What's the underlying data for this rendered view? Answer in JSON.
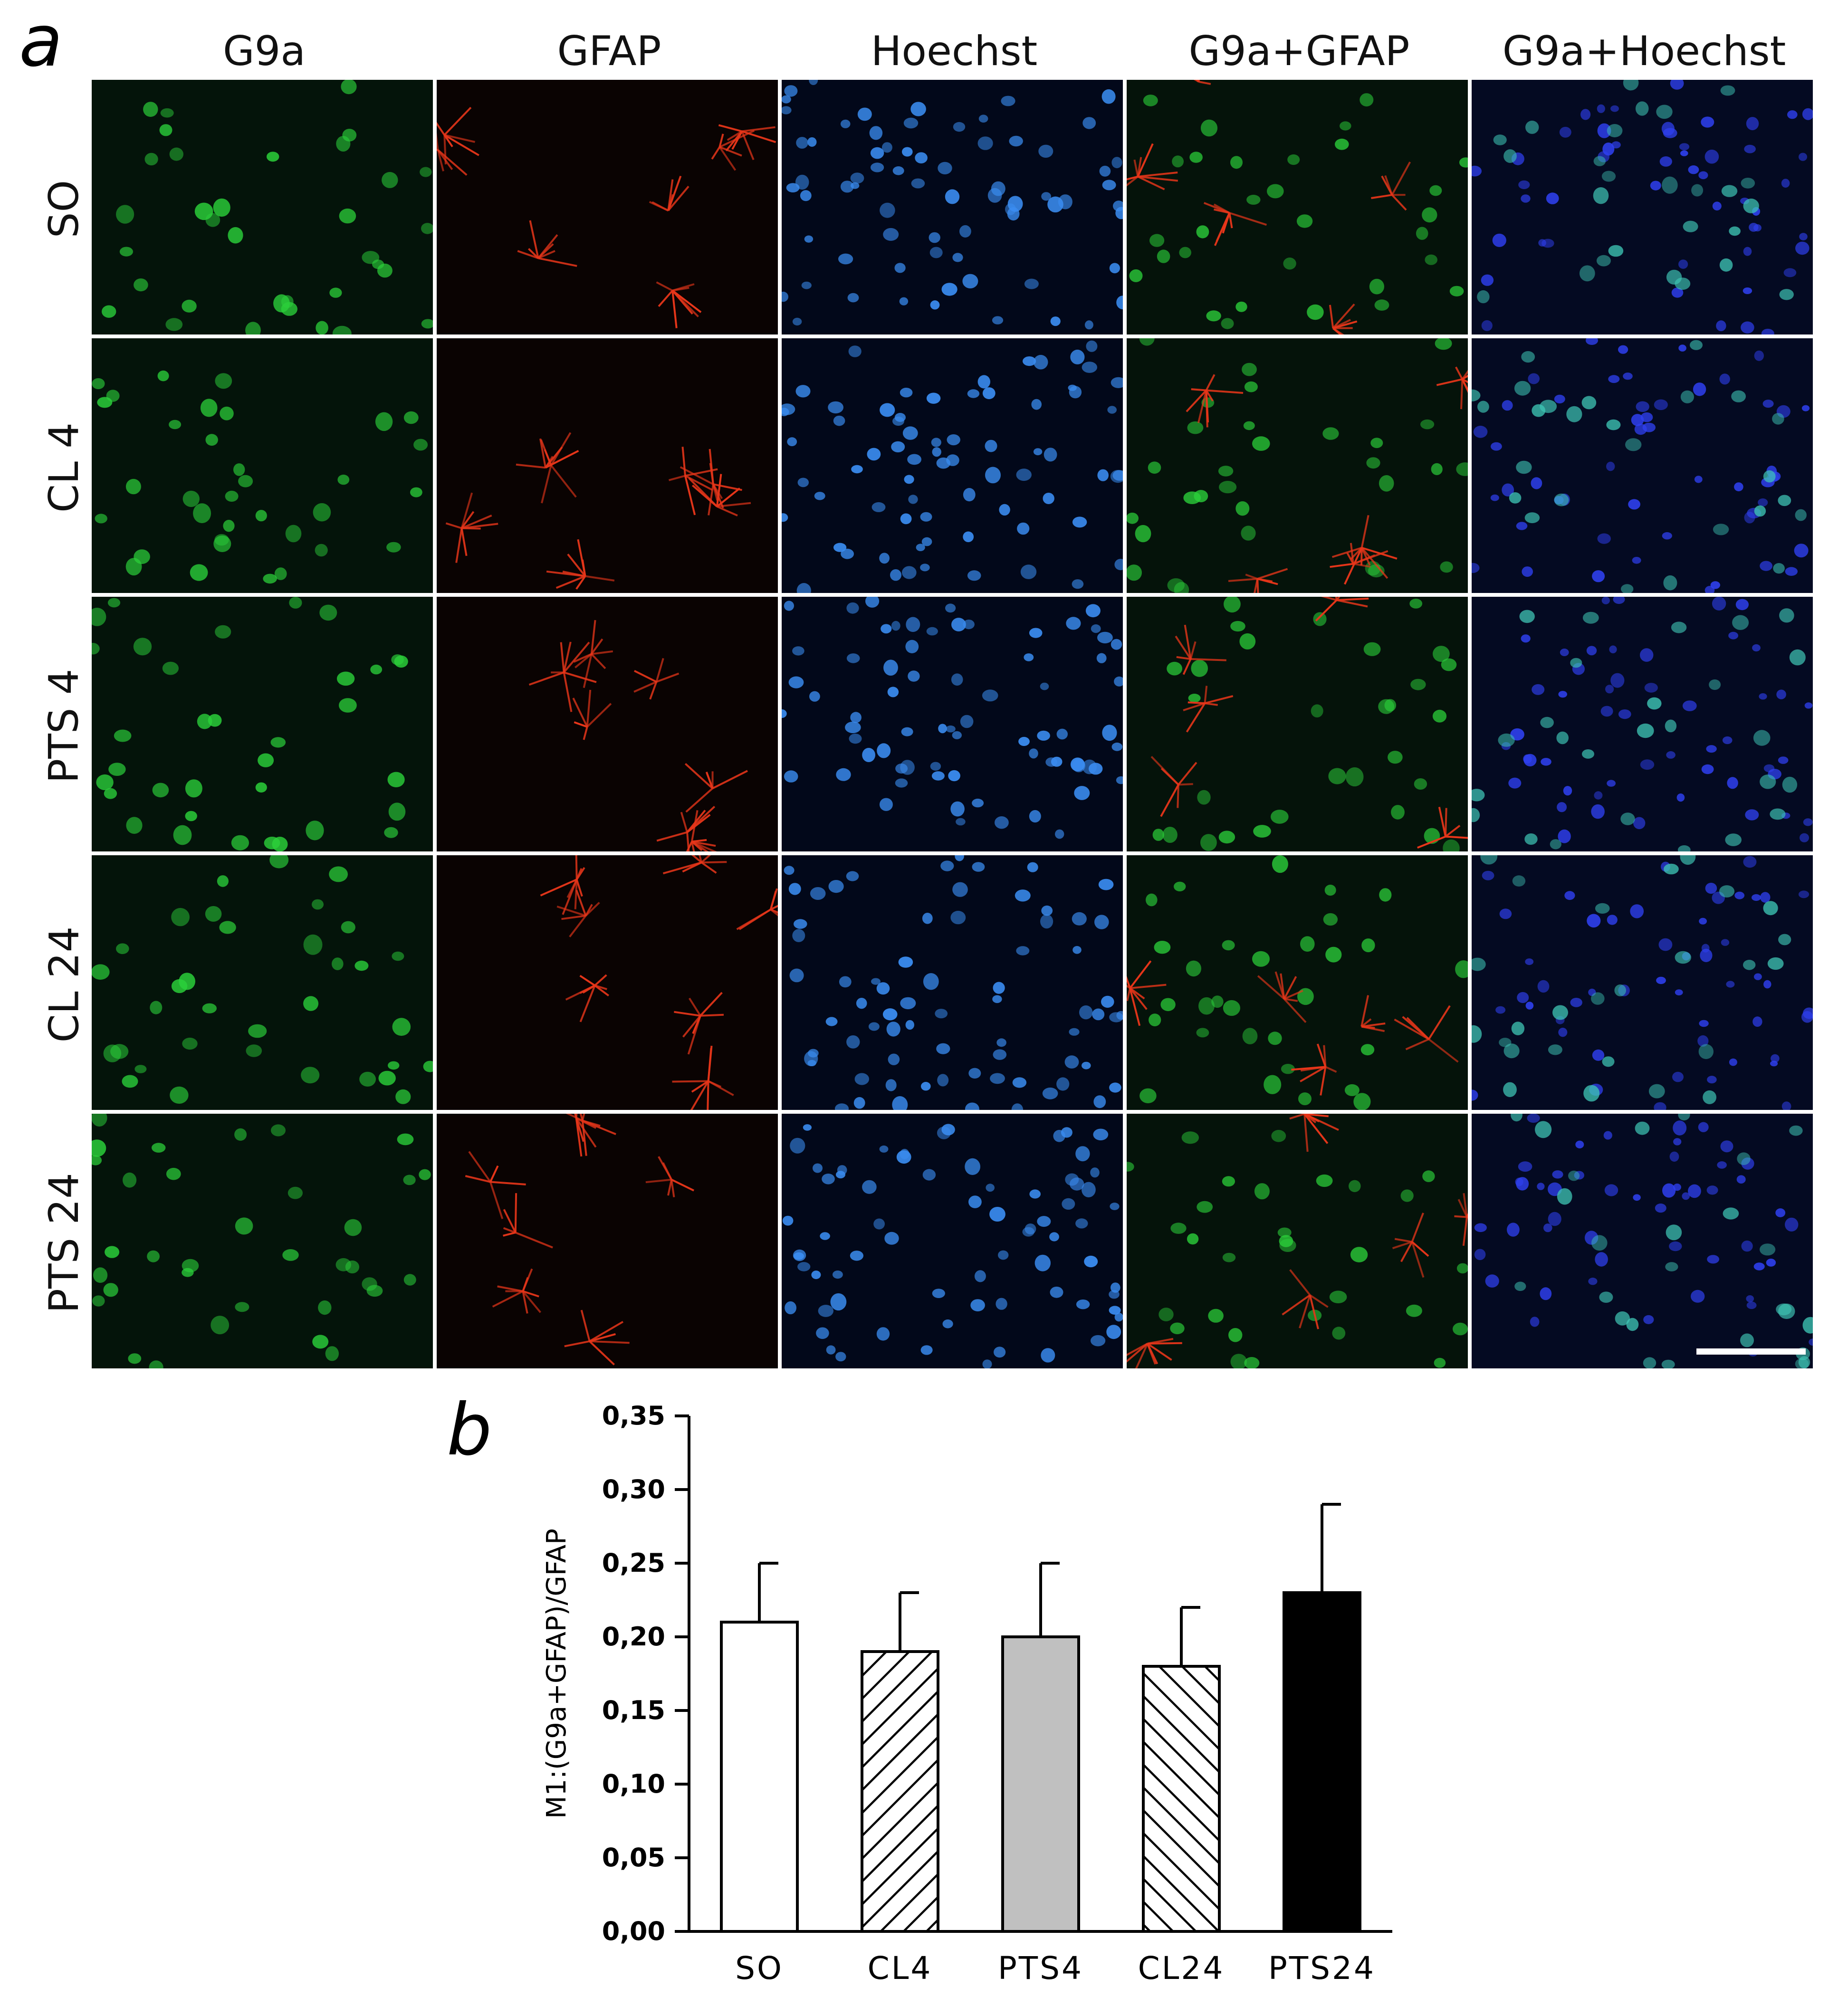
{
  "panel_a": {
    "letter": "a",
    "columns": [
      "G9a",
      "GFAP",
      "Hoechst",
      "G9a+GFAP",
      "G9a+Hoechst"
    ],
    "rows": [
      "SO",
      "CL 4",
      "PTS 4",
      "CL 24",
      "PTS 24"
    ],
    "channel_colors": {
      "G9a": "#2bd03a",
      "GFAP": "#e8361a",
      "Hoechst": "#3a8cf0",
      "G9a+GFAP": "#2bd03a",
      "G9a+Hoechst": "#2f40f0"
    }
  },
  "panel_b": {
    "letter": "b"
  },
  "chart_data": {
    "type": "bar",
    "categories": [
      "SO",
      "CL4",
      "PTS4",
      "CL24",
      "PTS24"
    ],
    "values": [
      0.21,
      0.19,
      0.2,
      0.18,
      0.23
    ],
    "error_upper": [
      0.25,
      0.23,
      0.25,
      0.22,
      0.29
    ],
    "fills": [
      "white",
      "hatch-forward",
      "#c0c0c0",
      "hatch-backward",
      "#000000"
    ],
    "ylabel": "M1:(G9a+GFAP)/GFAP",
    "xlabel": "",
    "ylim": [
      0,
      0.35
    ],
    "yticks": [
      "0,00",
      "0,05",
      "0,10",
      "0,15",
      "0,20",
      "0,25",
      "0,30",
      "0,35"
    ],
    "grid": false
  }
}
